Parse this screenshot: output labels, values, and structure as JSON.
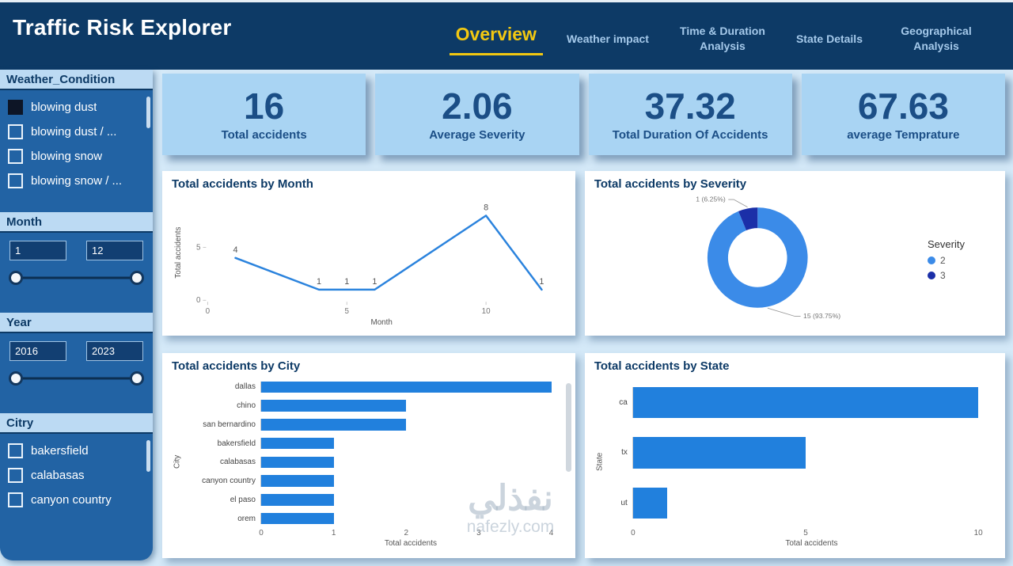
{
  "header": {
    "title": "Traffic Risk Explorer",
    "tabs": [
      {
        "id": "overview",
        "label": "Overview",
        "active": true
      },
      {
        "id": "weather-impact",
        "label": "Weather impact",
        "active": false
      },
      {
        "id": "time-duration-analysis",
        "label": "Time & Duration Analysis",
        "active": false
      },
      {
        "id": "state-details",
        "label": "State Details",
        "active": false
      },
      {
        "id": "geographical-analysis",
        "label": "Geographical Analysis",
        "active": false
      }
    ]
  },
  "sidebar": {
    "weather_filter": {
      "title": "Weather_Condition",
      "items": [
        {
          "label": "blowing dust",
          "checked": true
        },
        {
          "label": "blowing dust / ...",
          "checked": false
        },
        {
          "label": "blowing snow",
          "checked": false
        },
        {
          "label": "blowing snow / ...",
          "checked": false
        }
      ]
    },
    "month_filter": {
      "title": "Month",
      "from": "1",
      "to": "12"
    },
    "year_filter": {
      "title": "Year",
      "from": "2016",
      "to": "2023"
    },
    "city_filter": {
      "title": "Citry",
      "items": [
        {
          "label": "bakersfield",
          "checked": false
        },
        {
          "label": "calabasas",
          "checked": false
        },
        {
          "label": "canyon country",
          "checked": false
        }
      ]
    }
  },
  "kpis": [
    {
      "value": "16",
      "label": "Total accidents"
    },
    {
      "value": "2.06",
      "label": "Average Severity"
    },
    {
      "value": "37.32",
      "label": "Total Duration Of Accidents"
    },
    {
      "value": "67.63",
      "label": "average Temprature"
    }
  ],
  "chart_data": [
    {
      "type": "line",
      "title": "Total accidents by Month",
      "xlabel": "Month",
      "ylabel": "Total accidents",
      "x": [
        1,
        4,
        5,
        6,
        10,
        12
      ],
      "values": [
        4,
        1,
        1,
        1,
        8,
        1
      ],
      "xticks": [
        0,
        5,
        10
      ],
      "yticks": [
        0,
        5
      ],
      "xlim": [
        0,
        12.5
      ],
      "ylim": [
        0,
        9
      ],
      "line_color": "#2b83dd"
    },
    {
      "type": "pie",
      "title": "Total accidents by Severity",
      "legend_title": "Severity",
      "legend_position": "right",
      "slices": [
        {
          "name": "2",
          "value": 15,
          "label": "15 (93.75%)",
          "color": "#3b8be8"
        },
        {
          "name": "3",
          "value": 1,
          "label": "1 (6.25%)",
          "color": "#1b2fa8"
        }
      ]
    },
    {
      "type": "bar",
      "title": "Total accidents by City",
      "orientation": "horizontal",
      "categories": [
        "dallas",
        "chino",
        "san bernardino",
        "bakersfield",
        "calabasas",
        "canyon country",
        "el paso",
        "orem"
      ],
      "values": [
        4,
        2,
        2,
        1,
        1,
        1,
        1,
        1
      ],
      "xlabel": "Total accidents",
      "ylabel": "City",
      "xticks": [
        0,
        1,
        2,
        3,
        4
      ],
      "xlim": [
        0,
        4.2
      ],
      "bar_color": "#2180dd"
    },
    {
      "type": "bar",
      "title": "Total accidents by State",
      "orientation": "horizontal",
      "categories": [
        "ca",
        "tx",
        "ut"
      ],
      "values": [
        10,
        5,
        1
      ],
      "xlabel": "Total accidents",
      "ylabel": "State",
      "xticks": [
        0,
        5,
        10
      ],
      "xlim": [
        0,
        10.5
      ],
      "bar_color": "#2180dd"
    }
  ],
  "watermark": {
    "line1": "نفذلي",
    "line2": "nafezly.com"
  },
  "colors": {
    "header_bg": "#0d3a66",
    "active_tab": "#f2c811",
    "inactive_tab": "#a5c9ea",
    "sidebar_bg": "#2263a4",
    "section_header_bg": "#bcdaf3",
    "main_bg": "#d4e9f8",
    "kpi_bg": "#a9d4f3",
    "kpi_text": "#1b4e86",
    "accent_blue": "#2180dd",
    "donut_dark": "#1b2fa8"
  }
}
